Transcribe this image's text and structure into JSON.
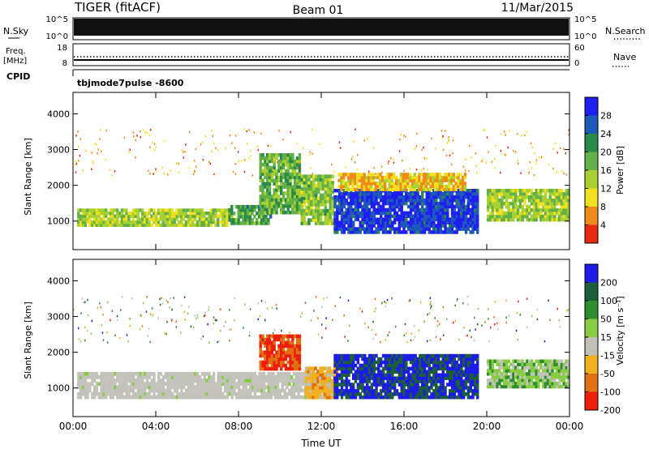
{
  "header": {
    "radar": "TIGER (fitACF)",
    "beam": "Beam 01",
    "date": "11/Mar/2015"
  },
  "top_panels": {
    "nsky": {
      "label": "N.Sky",
      "left_ticks": [
        "10^5",
        "10^0"
      ],
      "right_ticks": [
        "10^5",
        "10^0"
      ],
      "right_label": "N.Search"
    },
    "freq": {
      "label": "Freq.",
      "unit": "[MHz]",
      "left_ticks": [
        "18",
        "8"
      ],
      "right_ticks": [
        "60",
        "0"
      ],
      "right_label": "Nave"
    },
    "cpid": {
      "label": "CPID",
      "mode_text": "tbjmode7pulse -8600"
    }
  },
  "colors": {
    "power_scale": [
      "#1f1ff0",
      "#1e58b8",
      "#2a8a4a",
      "#64b048",
      "#a8d030",
      "#f0e020",
      "#f08a18",
      "#e82a12"
    ],
    "velocity_scale": [
      "#1c1ce6",
      "#1a5f3a",
      "#2e8e2e",
      "#88cc44",
      "#c0c0b8",
      "#f0b020",
      "#e07010",
      "#ee1e0e"
    ],
    "low_velocity_gray": "#c3c3bc"
  },
  "chart_data": [
    {
      "type": "heatmap",
      "title": "Power",
      "xlabel": "",
      "ylabel": "Slant Range [km]",
      "x_ticks": [
        "00:00",
        "04:00",
        "08:00",
        "12:00",
        "16:00",
        "20:00",
        "00:00"
      ],
      "xlim": [
        0,
        24
      ],
      "ylim": [
        200,
        4600
      ],
      "y_ticks": [
        1000,
        2000,
        3000,
        4000
      ],
      "colorbar": {
        "label": "Power [dB]",
        "ticks": [
          "28",
          "24",
          "20",
          "16",
          "12",
          "8",
          "4"
        ],
        "range": [
          0,
          32
        ]
      },
      "bands": [
        {
          "t0": 0.2,
          "t1": 7.5,
          "r0": 850,
          "r1": 1350,
          "value": 14
        },
        {
          "t0": 7.5,
          "t1": 9.6,
          "r0": 900,
          "r1": 1450,
          "value": 20
        },
        {
          "t0": 9.0,
          "t1": 11.0,
          "r0": 1200,
          "r1": 2900,
          "value": 18
        },
        {
          "t0": 11.0,
          "t1": 12.6,
          "r0": 900,
          "r1": 2300,
          "value": 16
        },
        {
          "t0": 12.6,
          "t1": 19.6,
          "r0": 650,
          "r1": 1900,
          "value": 28
        },
        {
          "t0": 12.8,
          "t1": 19.0,
          "r0": 1850,
          "r1": 2350,
          "value": 9
        },
        {
          "t0": 20.0,
          "t1": 24.0,
          "r0": 1000,
          "r1": 1900,
          "value": 15
        }
      ]
    },
    {
      "type": "heatmap",
      "title": "Velocity",
      "xlabel": "Time UT",
      "ylabel": "Slant Range [km]",
      "x_ticks": [
        "00:00",
        "04:00",
        "08:00",
        "12:00",
        "16:00",
        "20:00",
        "00:00"
      ],
      "xlim": [
        0,
        24
      ],
      "ylim": [
        200,
        4600
      ],
      "y_ticks": [
        1000,
        2000,
        3000,
        4000
      ],
      "colorbar": {
        "label": "Velocity [m s⁻¹]",
        "ticks": [
          "200",
          "100",
          "50",
          "15",
          "-15",
          "-50",
          "-100",
          "-200"
        ],
        "range": [
          -240,
          240
        ]
      },
      "bands": [
        {
          "t0": 0.2,
          "t1": 12.5,
          "r0": 700,
          "r1": 1450,
          "value": 0
        },
        {
          "t0": 9.0,
          "t1": 11.0,
          "r0": 1500,
          "r1": 2500,
          "value": -180
        },
        {
          "t0": 11.2,
          "t1": 12.8,
          "r0": 700,
          "r1": 1600,
          "value": -90
        },
        {
          "t0": 12.6,
          "t1": 19.6,
          "r0": 700,
          "r1": 1950,
          "value": 190
        },
        {
          "t0": 20.0,
          "t1": 24.0,
          "r0": 1000,
          "r1": 1800,
          "value": 40
        }
      ]
    }
  ]
}
